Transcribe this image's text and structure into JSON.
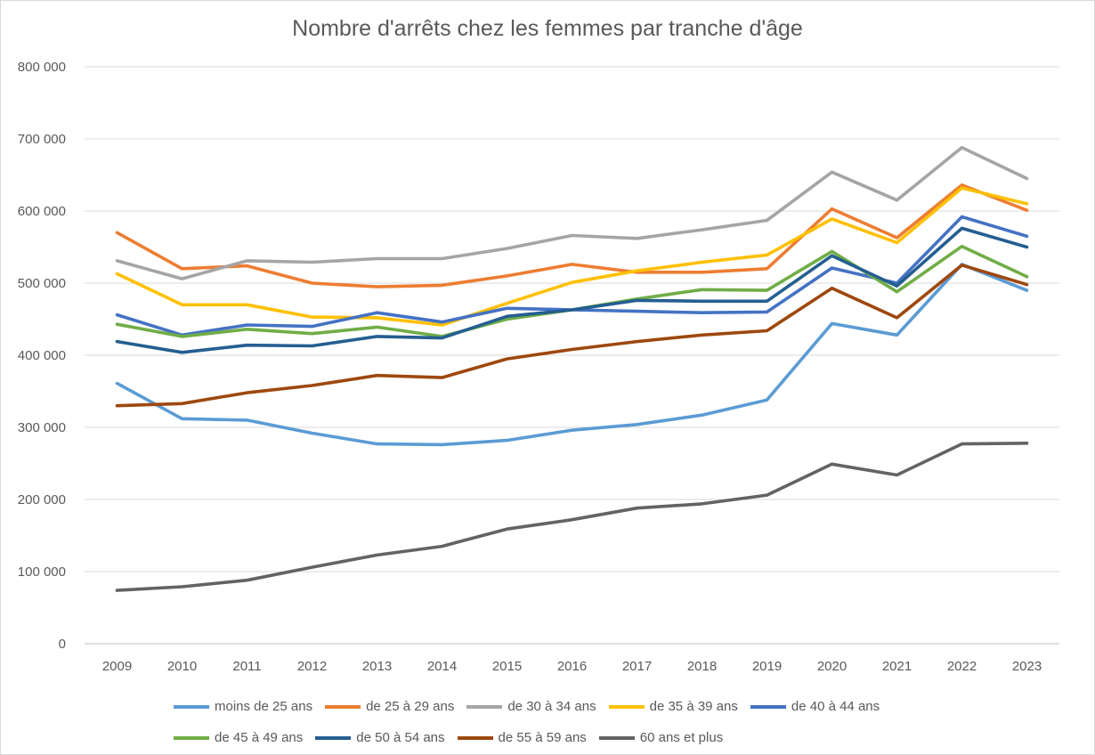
{
  "chart_data": {
    "type": "line",
    "title": "Nombre d'arrêts chez les femmes par tranche d'âge",
    "xlabel": "",
    "ylabel": "",
    "ylim": [
      0,
      800000
    ],
    "y_ticks": [
      0,
      100000,
      200000,
      300000,
      400000,
      500000,
      600000,
      700000,
      800000
    ],
    "y_tick_labels": [
      "0",
      "100 000",
      "200 000",
      "300 000",
      "400 000",
      "500 000",
      "600 000",
      "700 000",
      "800 000"
    ],
    "grid": true,
    "legend_position": "bottom",
    "categories": [
      "2009",
      "2010",
      "2011",
      "2012",
      "2013",
      "2014",
      "2015",
      "2016",
      "2017",
      "2018",
      "2019",
      "2020",
      "2021",
      "2022",
      "2023"
    ],
    "series": [
      {
        "name": "moins de 25 ans",
        "color": "#5b9bd5",
        "values": [
          361000,
          312000,
          310000,
          292000,
          277000,
          276000,
          282000,
          296000,
          304000,
          317000,
          338000,
          444000,
          428000,
          526000,
          490000
        ]
      },
      {
        "name": "de 25 à 29 ans",
        "color": "#ed7d31",
        "values": [
          570000,
          520000,
          524000,
          500000,
          495000,
          497000,
          510000,
          526000,
          515000,
          515000,
          520000,
          603000,
          563000,
          636000,
          601000
        ]
      },
      {
        "name": "de 30 à 34 ans",
        "color": "#a5a5a5",
        "values": [
          531000,
          506000,
          531000,
          529000,
          534000,
          534000,
          548000,
          566000,
          562000,
          574000,
          587000,
          654000,
          615000,
          688000,
          645000
        ]
      },
      {
        "name": "de 35 à 39 ans",
        "color": "#ffc000",
        "values": [
          513000,
          470000,
          470000,
          453000,
          452000,
          442000,
          472000,
          501000,
          517000,
          529000,
          539000,
          589000,
          556000,
          632000,
          610000
        ]
      },
      {
        "name": "de 40 à 44 ans",
        "color": "#4472c4",
        "values": [
          456000,
          428000,
          442000,
          440000,
          459000,
          446000,
          465000,
          463000,
          461000,
          459000,
          460000,
          521000,
          500000,
          592000,
          565000
        ]
      },
      {
        "name": "de 45 à 49 ans",
        "color": "#70ad47",
        "values": [
          443000,
          426000,
          436000,
          430000,
          439000,
          426000,
          450000,
          463000,
          478000,
          491000,
          490000,
          544000,
          488000,
          551000,
          509000
        ]
      },
      {
        "name": "de 50 à 54 ans",
        "color": "#255e91",
        "values": [
          419000,
          404000,
          414000,
          413000,
          426000,
          424000,
          454000,
          463000,
          476000,
          475000,
          475000,
          538000,
          496000,
          576000,
          550000
        ]
      },
      {
        "name": "de 55 à 59 ans",
        "color": "#9e480e",
        "values": [
          330000,
          333000,
          348000,
          358000,
          372000,
          369000,
          395000,
          408000,
          419000,
          428000,
          434000,
          493000,
          452000,
          525000,
          498000
        ]
      },
      {
        "name": "60 ans et plus",
        "color": "#636363",
        "values": [
          74000,
          79000,
          88000,
          106000,
          123000,
          135000,
          159000,
          172000,
          188000,
          194000,
          206000,
          249000,
          234000,
          277000,
          278000
        ]
      }
    ]
  }
}
